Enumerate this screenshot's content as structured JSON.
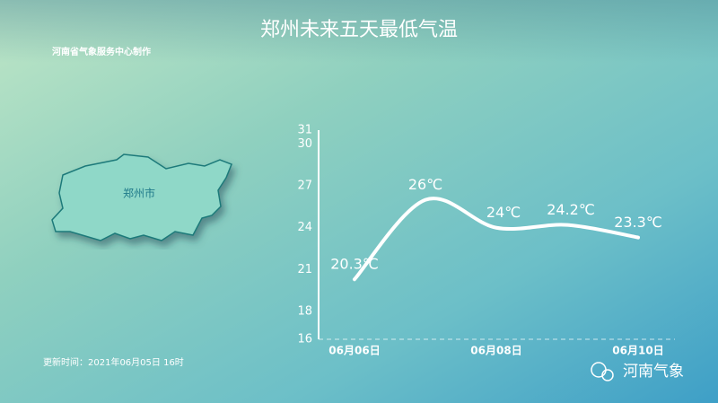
{
  "chart_data": {
    "type": "line",
    "title": "郑州未来五天最低气温",
    "subtitle": "河南省气象服务中心制作",
    "categories": [
      "06月06日",
      null,
      "06月08日",
      null,
      "06月10日"
    ],
    "values": [
      20.3,
      26,
      24,
      24.2,
      23.3
    ],
    "value_labels": [
      "20.3℃",
      "26℃",
      "24℃",
      "24.2℃",
      "23.3℃"
    ],
    "color": "#ffffff",
    "ylim": [
      16,
      31
    ],
    "yticks": [
      16,
      18,
      21,
      24,
      27,
      30,
      31
    ],
    "annotations": [
      "郑州市",
      "更新时间：2021年06月05日 16时",
      "河南气象"
    ]
  }
}
